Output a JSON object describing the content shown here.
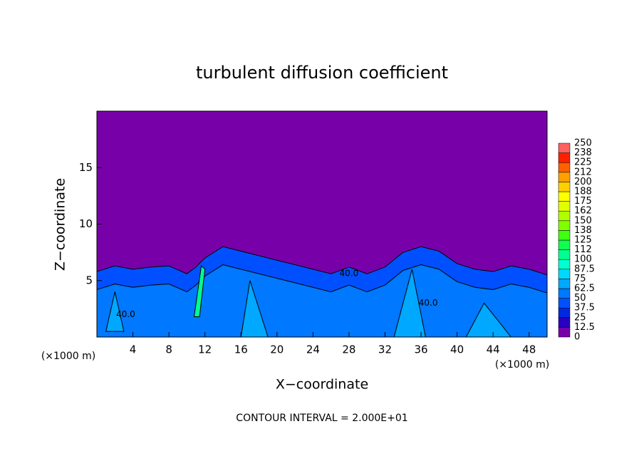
{
  "chart_data": {
    "type": "contour",
    "title": "turbulent diffusion coefficient",
    "x_label": "X−coordinate",
    "y_label": "Z−coordinate",
    "x_unit": "(×1000 m)",
    "y_unit": "(×1000 m)",
    "footer": "CONTOUR INTERVAL = 2.000E+01",
    "contour_labels": [
      "40.0",
      "40.0",
      "40.0"
    ],
    "xlim": [
      0,
      50
    ],
    "xticks": [
      4,
      8,
      12,
      16,
      20,
      24,
      28,
      32,
      36,
      40,
      44,
      48
    ],
    "ylim": [
      0,
      20
    ],
    "yticks": [
      5,
      10,
      15
    ],
    "colorbar": {
      "levels": [
        0,
        12.5,
        25,
        37.5,
        50,
        62.5,
        75,
        87.5,
        100,
        112,
        125,
        138,
        150,
        162,
        175,
        188,
        200,
        212,
        225,
        238,
        250
      ],
      "colors": [
        "#7800a8",
        "#2800c0",
        "#0028e0",
        "#0050ff",
        "#0078ff",
        "#00a8ff",
        "#00d8ff",
        "#00ffd0",
        "#00ff90",
        "#10ff50",
        "#40ff10",
        "#80ff00",
        "#b0ff00",
        "#e0ff00",
        "#ffff00",
        "#ffd000",
        "#ffa000",
        "#ff6000",
        "#ff2000",
        "#ff6060"
      ]
    }
  }
}
